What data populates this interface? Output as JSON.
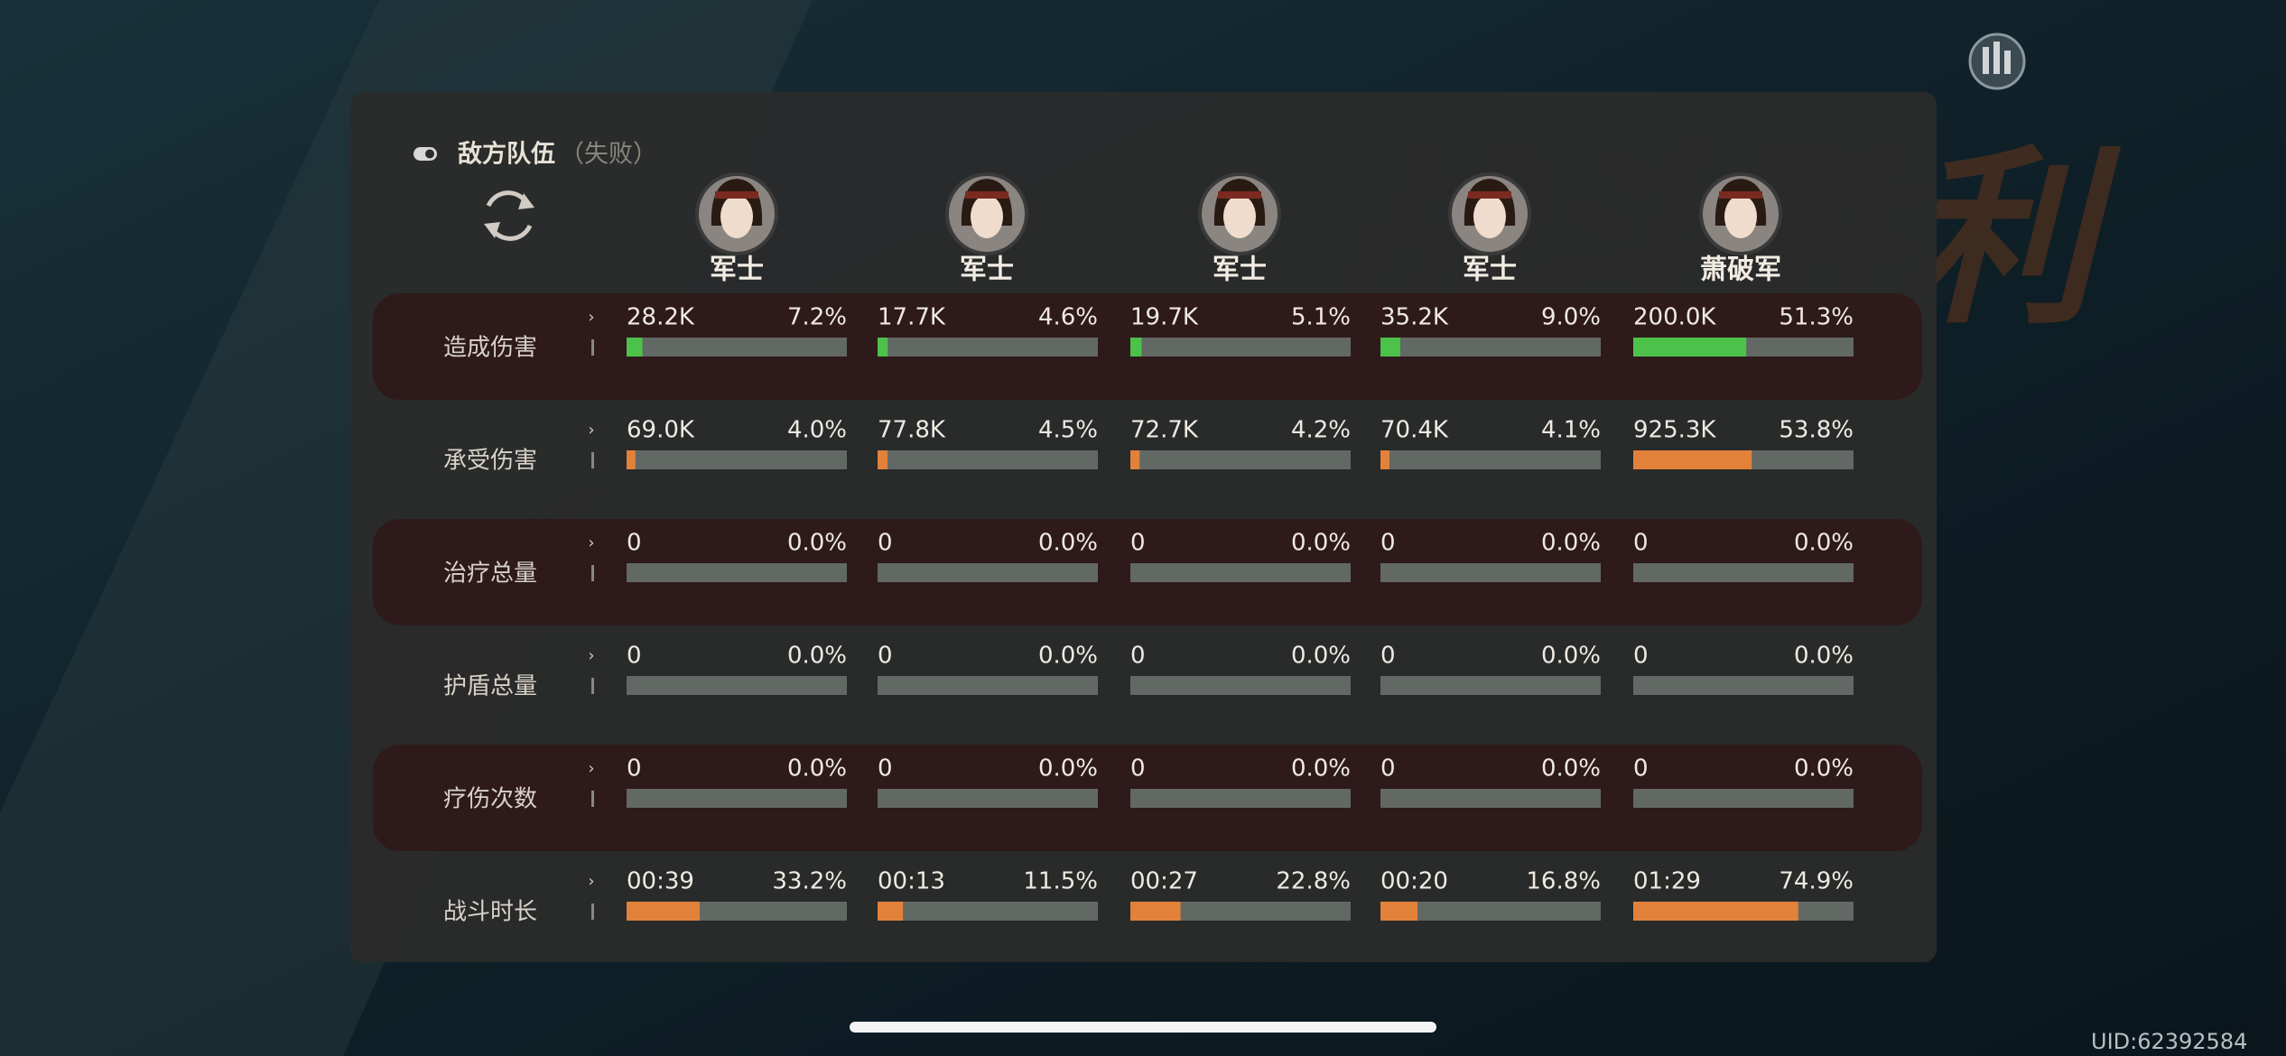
{
  "background_title": "战斗胜利",
  "header": {
    "title": "敌方队伍",
    "status": "（失败）"
  },
  "players": [
    "军士",
    "军士",
    "军士",
    "军士",
    "萧破军"
  ],
  "rows": [
    {
      "label": "造成伤害",
      "bar_color": "#4cc24a",
      "cells": [
        {
          "value": "28.2K",
          "share": 7.2,
          "share_label": "7.2%"
        },
        {
          "value": "17.7K",
          "share": 4.6,
          "share_label": "4.6%"
        },
        {
          "value": "19.7K",
          "share": 5.1,
          "share_label": "5.1%"
        },
        {
          "value": "35.2K",
          "share": 9.0,
          "share_label": "9.0%"
        },
        {
          "value": "200.0K",
          "share": 51.3,
          "share_label": "51.3%"
        }
      ]
    },
    {
      "label": "承受伤害",
      "bar_color": "#e2823a",
      "cells": [
        {
          "value": "69.0K",
          "share": 4.0,
          "share_label": "4.0%"
        },
        {
          "value": "77.8K",
          "share": 4.5,
          "share_label": "4.5%"
        },
        {
          "value": "72.7K",
          "share": 4.2,
          "share_label": "4.2%"
        },
        {
          "value": "70.4K",
          "share": 4.1,
          "share_label": "4.1%"
        },
        {
          "value": "925.3K",
          "share": 53.8,
          "share_label": "53.8%"
        }
      ]
    },
    {
      "label": "治疗总量",
      "bar_color": "#e2823a",
      "cells": [
        {
          "value": "0",
          "share": 0,
          "share_label": "0.0%"
        },
        {
          "value": "0",
          "share": 0,
          "share_label": "0.0%"
        },
        {
          "value": "0",
          "share": 0,
          "share_label": "0.0%"
        },
        {
          "value": "0",
          "share": 0,
          "share_label": "0.0%"
        },
        {
          "value": "0",
          "share": 0,
          "share_label": "0.0%"
        }
      ]
    },
    {
      "label": "护盾总量",
      "bar_color": "#e2823a",
      "cells": [
        {
          "value": "0",
          "share": 0,
          "share_label": "0.0%"
        },
        {
          "value": "0",
          "share": 0,
          "share_label": "0.0%"
        },
        {
          "value": "0",
          "share": 0,
          "share_label": "0.0%"
        },
        {
          "value": "0",
          "share": 0,
          "share_label": "0.0%"
        },
        {
          "value": "0",
          "share": 0,
          "share_label": "0.0%"
        }
      ]
    },
    {
      "label": "疗伤次数",
      "bar_color": "#e2823a",
      "cells": [
        {
          "value": "0",
          "share": 0,
          "share_label": "0.0%"
        },
        {
          "value": "0",
          "share": 0,
          "share_label": "0.0%"
        },
        {
          "value": "0",
          "share": 0,
          "share_label": "0.0%"
        },
        {
          "value": "0",
          "share": 0,
          "share_label": "0.0%"
        },
        {
          "value": "0",
          "share": 0,
          "share_label": "0.0%"
        }
      ]
    },
    {
      "label": "战斗时长",
      "bar_color": "#e2823a",
      "cells": [
        {
          "value": "00:39",
          "share": 33.2,
          "share_label": "33.2%"
        },
        {
          "value": "00:13",
          "share": 11.5,
          "share_label": "11.5%"
        },
        {
          "value": "00:27",
          "share": 22.8,
          "share_label": "22.8%"
        },
        {
          "value": "00:20",
          "share": 16.8,
          "share_label": "16.8%"
        },
        {
          "value": "01:29",
          "share": 74.9,
          "share_label": "74.9%"
        }
      ]
    }
  ],
  "uid": "UID:62392584"
}
